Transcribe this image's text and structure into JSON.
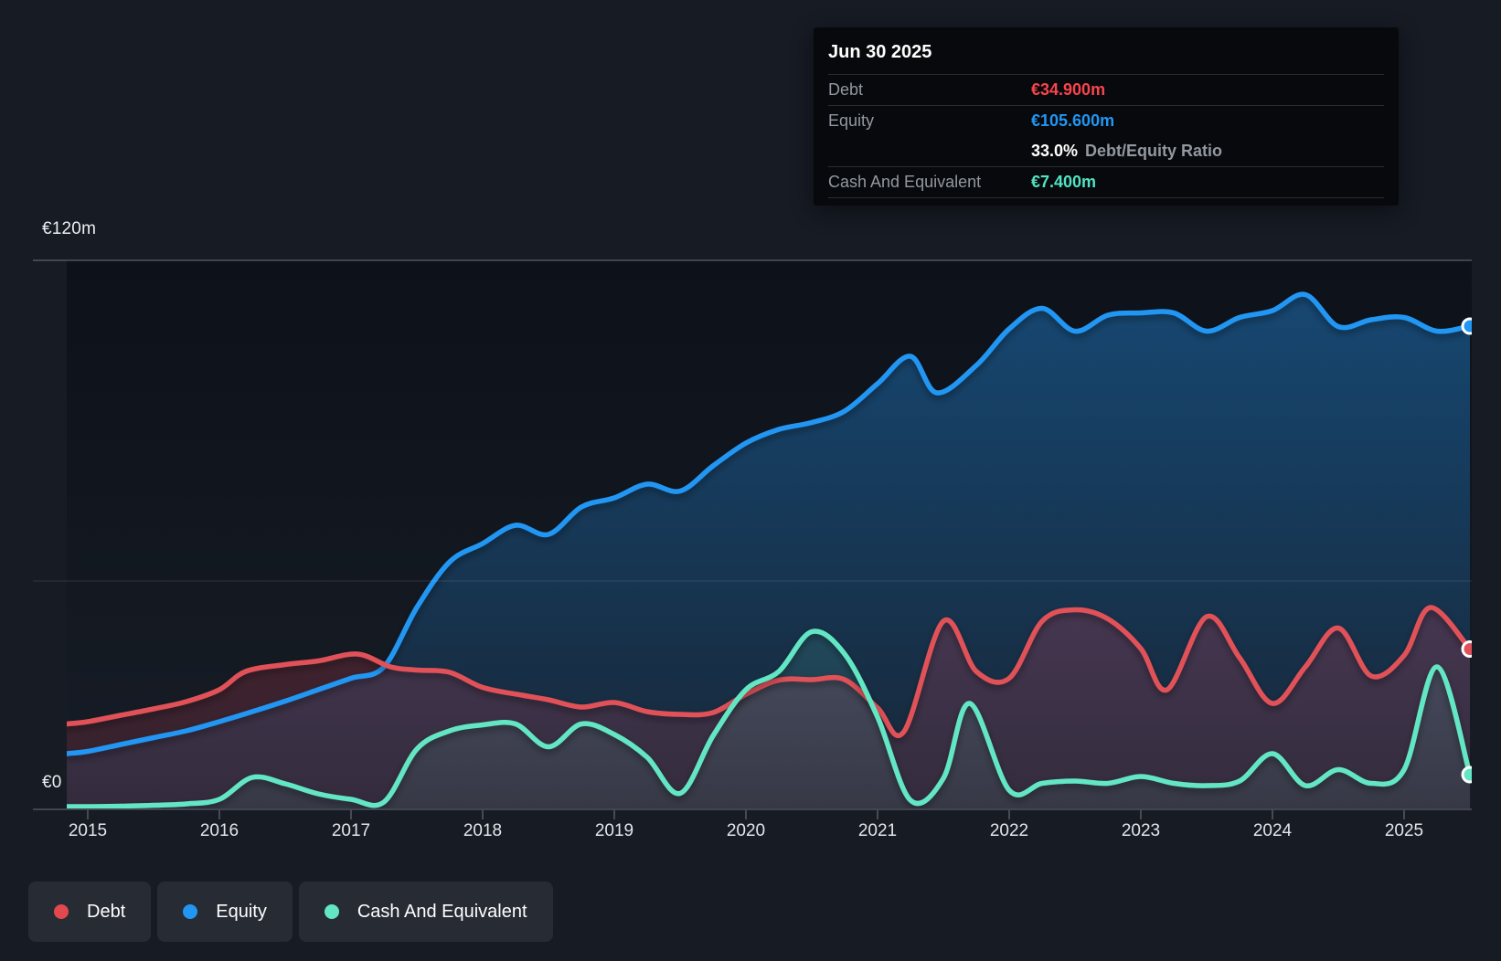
{
  "y_axis": {
    "top_label": "€120m",
    "zero_label": "€0"
  },
  "x_axis": {
    "years": [
      "2015",
      "2016",
      "2017",
      "2018",
      "2019",
      "2020",
      "2021",
      "2022",
      "2023",
      "2024",
      "2025"
    ]
  },
  "tooltip": {
    "title": "Jun 30 2025",
    "debt": {
      "label": "Debt",
      "value": "€34.900m",
      "color": "#f8444d"
    },
    "equity": {
      "label": "Equity",
      "value": "€105.600m",
      "color": "#2196f3"
    },
    "ratio": {
      "value": "33.0%",
      "label": "Debt/Equity Ratio"
    },
    "cash": {
      "label": "Cash And Equivalent",
      "value": "€7.400m",
      "color": "#52e3c2"
    }
  },
  "legend": {
    "items": [
      {
        "label": "Debt",
        "color": "#e2484e"
      },
      {
        "label": "Equity",
        "color": "#2196f3"
      },
      {
        "label": "Cash And Equivalent",
        "color": "#63e6c4"
      }
    ]
  },
  "chart_data": {
    "type": "area",
    "title": "Debt to Equity History and Analysis",
    "x_unit": "year",
    "xlim": [
      2014.84,
      2025.55
    ],
    "ylim": [
      0,
      120
    ],
    "grid": "horizontal",
    "legend_position": "bottom-left",
    "marker_date": "Jun 30 2025",
    "series": [
      {
        "name": "Equity",
        "color": "#2196f3",
        "last_value": 105.6,
        "points": [
          [
            2014.84,
            12
          ],
          [
            2015,
            12.5
          ],
          [
            2015.25,
            14
          ],
          [
            2015.5,
            15.5
          ],
          [
            2015.75,
            17
          ],
          [
            2016,
            19
          ],
          [
            2016.25,
            21.2
          ],
          [
            2016.5,
            23.5
          ],
          [
            2016.75,
            26
          ],
          [
            2017,
            28.5
          ],
          [
            2017.25,
            31
          ],
          [
            2017.5,
            44
          ],
          [
            2017.75,
            54
          ],
          [
            2018,
            58
          ],
          [
            2018.25,
            62
          ],
          [
            2018.5,
            60
          ],
          [
            2018.75,
            66
          ],
          [
            2019,
            68
          ],
          [
            2019.25,
            71
          ],
          [
            2019.5,
            69.5
          ],
          [
            2019.75,
            75
          ],
          [
            2020,
            80
          ],
          [
            2020.25,
            83
          ],
          [
            2020.5,
            84.5
          ],
          [
            2020.75,
            87
          ],
          [
            2021,
            93
          ],
          [
            2021.25,
            99
          ],
          [
            2021.45,
            91
          ],
          [
            2021.75,
            97
          ],
          [
            2022,
            105
          ],
          [
            2022.25,
            109.5
          ],
          [
            2022.5,
            104.5
          ],
          [
            2022.75,
            108
          ],
          [
            2023,
            108.5
          ],
          [
            2023.25,
            108.5
          ],
          [
            2023.5,
            104.5
          ],
          [
            2023.75,
            107.5
          ],
          [
            2024,
            109
          ],
          [
            2024.25,
            112.5
          ],
          [
            2024.5,
            105.5
          ],
          [
            2024.75,
            107
          ],
          [
            2025,
            107.5
          ],
          [
            2025.25,
            104.5
          ],
          [
            2025.5,
            105.6
          ]
        ]
      },
      {
        "name": "Debt",
        "color": "#e05159",
        "last_value": 34.9,
        "points": [
          [
            2014.84,
            18.5
          ],
          [
            2015,
            19
          ],
          [
            2015.25,
            20.4
          ],
          [
            2015.5,
            21.8
          ],
          [
            2015.75,
            23.4
          ],
          [
            2016,
            26
          ],
          [
            2016.2,
            30
          ],
          [
            2016.5,
            31.5
          ],
          [
            2016.75,
            32.3
          ],
          [
            2017.05,
            33.8
          ],
          [
            2017.3,
            31
          ],
          [
            2017.5,
            30.3
          ],
          [
            2017.75,
            29.8
          ],
          [
            2018,
            26.5
          ],
          [
            2018.3,
            24.8
          ],
          [
            2018.5,
            23.8
          ],
          [
            2018.75,
            22.2
          ],
          [
            2019,
            23.2
          ],
          [
            2019.25,
            21.2
          ],
          [
            2019.5,
            20.6
          ],
          [
            2019.75,
            21
          ],
          [
            2020,
            25
          ],
          [
            2020.25,
            28.1
          ],
          [
            2020.5,
            28.2
          ],
          [
            2020.75,
            28.2
          ],
          [
            2021,
            22
          ],
          [
            2021.2,
            16.8
          ],
          [
            2021.5,
            41
          ],
          [
            2021.75,
            30
          ],
          [
            2022,
            28.5
          ],
          [
            2022.25,
            41
          ],
          [
            2022.5,
            43.5
          ],
          [
            2022.75,
            41.5
          ],
          [
            2023,
            35
          ],
          [
            2023.2,
            26
          ],
          [
            2023.5,
            42
          ],
          [
            2023.75,
            33
          ],
          [
            2024,
            23
          ],
          [
            2024.25,
            31
          ],
          [
            2024.5,
            39.5
          ],
          [
            2024.75,
            29
          ],
          [
            2025,
            33.5
          ],
          [
            2025.2,
            44
          ],
          [
            2025.5,
            34.9
          ]
        ]
      },
      {
        "name": "Cash And Equivalent",
        "color": "#63e6c4",
        "last_value": 7.4,
        "points": [
          [
            2014.84,
            0.4
          ],
          [
            2015,
            0.4
          ],
          [
            2015.25,
            0.5
          ],
          [
            2015.5,
            0.7
          ],
          [
            2015.75,
            1
          ],
          [
            2016,
            2
          ],
          [
            2016.25,
            6.8
          ],
          [
            2016.5,
            5.4
          ],
          [
            2016.75,
            3.2
          ],
          [
            2017,
            2
          ],
          [
            2017.25,
            1.4
          ],
          [
            2017.5,
            13
          ],
          [
            2017.75,
            17
          ],
          [
            2018,
            18.3
          ],
          [
            2018.25,
            18.5
          ],
          [
            2018.5,
            13.5
          ],
          [
            2018.75,
            18.5
          ],
          [
            2019,
            16.2
          ],
          [
            2019.25,
            11.2
          ],
          [
            2019.5,
            3.3
          ],
          [
            2019.75,
            15.9
          ],
          [
            2020,
            26
          ],
          [
            2020.25,
            30
          ],
          [
            2020.5,
            38.7
          ],
          [
            2020.75,
            33.8
          ],
          [
            2021,
            20
          ],
          [
            2021.25,
            1.8
          ],
          [
            2021.5,
            6.6
          ],
          [
            2021.7,
            23
          ],
          [
            2022,
            4
          ],
          [
            2022.25,
            5.5
          ],
          [
            2022.5,
            6
          ],
          [
            2022.75,
            5.5
          ],
          [
            2023,
            7
          ],
          [
            2023.25,
            5.5
          ],
          [
            2023.5,
            5
          ],
          [
            2023.75,
            6
          ],
          [
            2024,
            12
          ],
          [
            2024.25,
            5
          ],
          [
            2024.5,
            8.5
          ],
          [
            2024.75,
            5.5
          ],
          [
            2025,
            8.5
          ],
          [
            2025.25,
            31
          ],
          [
            2025.5,
            7.4
          ]
        ]
      }
    ]
  }
}
